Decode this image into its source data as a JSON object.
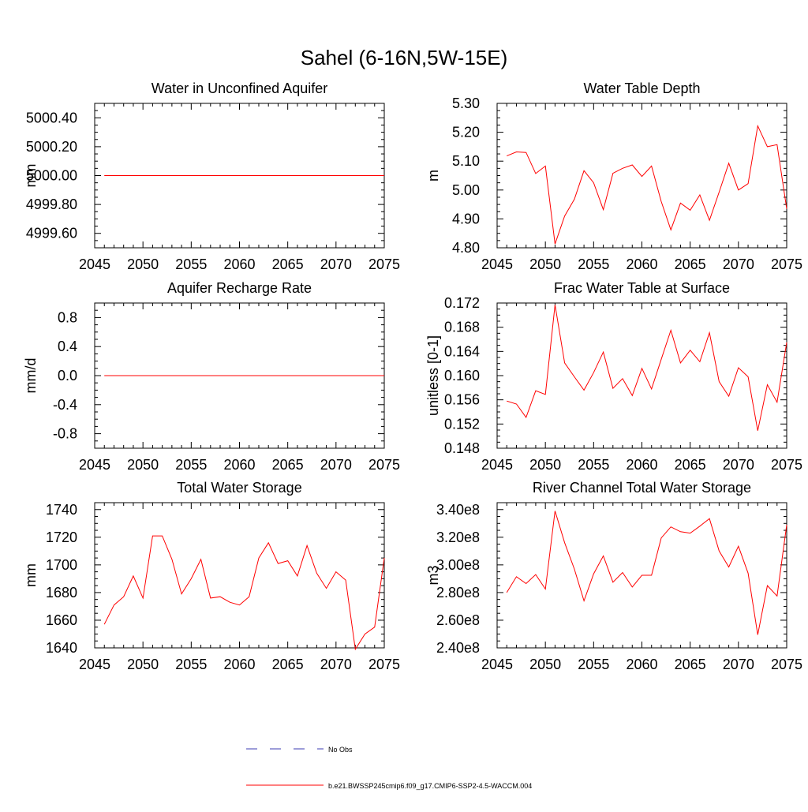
{
  "figure": {
    "title": "Sahel (6-16N,5W-15E)"
  },
  "legend": {
    "entries": [
      {
        "label": "No Obs",
        "color": "#3b3bb3",
        "dash": true
      },
      {
        "label": "b.e21.BWSSP245cmip6.f09_g17.CMIP6-SSP2-4.5-WACCM.004",
        "color": "#ff0000",
        "dash": false
      }
    ]
  },
  "chart_data": [
    {
      "type": "line",
      "title": "Water in Unconfined Aquifer",
      "ylabel": "mm",
      "xlim": [
        2045,
        2075
      ],
      "ylim": [
        4999.5,
        5000.5
      ],
      "xticks": [
        2045,
        2050,
        2055,
        2060,
        2065,
        2070,
        2075
      ],
      "yticks": [
        4999.6,
        4999.8,
        5000.0,
        5000.2,
        5000.4
      ],
      "ytick_labels": [
        "4999.60",
        "4999.80",
        "5000.00",
        "5000.20",
        "5000.40"
      ],
      "x": [
        2046,
        2047,
        2048,
        2049,
        2050,
        2051,
        2052,
        2053,
        2054,
        2055,
        2056,
        2057,
        2058,
        2059,
        2060,
        2061,
        2062,
        2063,
        2064,
        2065,
        2066,
        2067,
        2068,
        2069,
        2070,
        2071,
        2072,
        2073,
        2074,
        2075
      ],
      "series": [
        {
          "name": "b.e21.BWSSP245cmip6.f09_g17.CMIP6-SSP2-4.5-WACCM.004",
          "color": "#ff0000",
          "values": [
            5000,
            5000,
            5000,
            5000,
            5000,
            5000,
            5000,
            5000,
            5000,
            5000,
            5000,
            5000,
            5000,
            5000,
            5000,
            5000,
            5000,
            5000,
            5000,
            5000,
            5000,
            5000,
            5000,
            5000,
            5000,
            5000,
            5000,
            5000,
            5000,
            5000
          ]
        }
      ]
    },
    {
      "type": "line",
      "title": "Water Table Depth",
      "ylabel": "m",
      "xlim": [
        2045,
        2075
      ],
      "ylim": [
        4.8,
        5.3
      ],
      "xticks": [
        2045,
        2050,
        2055,
        2060,
        2065,
        2070,
        2075
      ],
      "yticks": [
        4.8,
        4.9,
        5.0,
        5.1,
        5.2,
        5.3
      ],
      "ytick_labels": [
        "4.80",
        "4.90",
        "5.00",
        "5.10",
        "5.20",
        "5.30"
      ],
      "x": [
        2046,
        2047,
        2048,
        2049,
        2050,
        2051,
        2052,
        2053,
        2054,
        2055,
        2056,
        2057,
        2058,
        2059,
        2060,
        2061,
        2062,
        2063,
        2064,
        2065,
        2066,
        2067,
        2068,
        2069,
        2070,
        2071,
        2072,
        2073,
        2074,
        2075
      ],
      "series": [
        {
          "name": "b.e21.BWSSP245cmip6.f09_g17.CMIP6-SSP2-4.5-WACCM.004",
          "color": "#ff0000",
          "values": [
            5.118,
            5.132,
            5.13,
            5.057,
            5.083,
            4.813,
            4.91,
            4.968,
            5.067,
            5.025,
            4.932,
            5.058,
            5.075,
            5.087,
            5.047,
            5.083,
            4.96,
            4.862,
            4.955,
            4.93,
            4.983,
            4.895,
            4.993,
            5.093,
            5.0,
            5.022,
            5.222,
            5.15,
            5.157,
            4.935
          ]
        }
      ]
    },
    {
      "type": "line",
      "title": "Aquifer Recharge Rate",
      "ylabel": "mm/d",
      "xlim": [
        2045,
        2075
      ],
      "ylim": [
        -1.0,
        1.0
      ],
      "xticks": [
        2045,
        2050,
        2055,
        2060,
        2065,
        2070,
        2075
      ],
      "yticks": [
        -0.8,
        -0.4,
        0.0,
        0.4,
        0.8
      ],
      "ytick_labels": [
        "-0.8",
        "-0.4",
        "0.0",
        "0.4",
        "0.8"
      ],
      "x": [
        2046,
        2047,
        2048,
        2049,
        2050,
        2051,
        2052,
        2053,
        2054,
        2055,
        2056,
        2057,
        2058,
        2059,
        2060,
        2061,
        2062,
        2063,
        2064,
        2065,
        2066,
        2067,
        2068,
        2069,
        2070,
        2071,
        2072,
        2073,
        2074,
        2075
      ],
      "series": [
        {
          "name": "b.e21.BWSSP245cmip6.f09_g17.CMIP6-SSP2-4.5-WACCM.004",
          "color": "#ff0000",
          "values": [
            0,
            0,
            0,
            0,
            0,
            0,
            0,
            0,
            0,
            0,
            0,
            0,
            0,
            0,
            0,
            0,
            0,
            0,
            0,
            0,
            0,
            0,
            0,
            0,
            0,
            0,
            0,
            0,
            0,
            0
          ]
        }
      ]
    },
    {
      "type": "line",
      "title": "Frac Water Table at Surface",
      "ylabel": "unitless [0-1]",
      "xlim": [
        2045,
        2075
      ],
      "ylim": [
        0.148,
        0.172
      ],
      "xticks": [
        2045,
        2050,
        2055,
        2060,
        2065,
        2070,
        2075
      ],
      "yticks": [
        0.148,
        0.152,
        0.156,
        0.16,
        0.164,
        0.168,
        0.172
      ],
      "ytick_labels": [
        "0.148",
        "0.152",
        "0.156",
        "0.160",
        "0.164",
        "0.168",
        "0.172"
      ],
      "x": [
        2046,
        2047,
        2048,
        2049,
        2050,
        2051,
        2052,
        2053,
        2054,
        2055,
        2056,
        2057,
        2058,
        2059,
        2060,
        2061,
        2062,
        2063,
        2064,
        2065,
        2066,
        2067,
        2068,
        2069,
        2070,
        2071,
        2072,
        2073,
        2074,
        2075
      ],
      "series": [
        {
          "name": "b.e21.BWSSP245cmip6.f09_g17.CMIP6-SSP2-4.5-WACCM.004",
          "color": "#ff0000",
          "values": [
            0.1558,
            0.1553,
            0.1531,
            0.1575,
            0.1569,
            0.1717,
            0.1621,
            0.1598,
            0.1576,
            0.1605,
            0.1639,
            0.1579,
            0.1595,
            0.1567,
            0.1612,
            0.1578,
            0.1627,
            0.1675,
            0.1621,
            0.1642,
            0.1623,
            0.1671,
            0.159,
            0.1566,
            0.1613,
            0.1598,
            0.1509,
            0.1585,
            0.1556,
            0.1655
          ]
        }
      ]
    },
    {
      "type": "line",
      "title": "Total Water Storage",
      "ylabel": "mm",
      "xlim": [
        2045,
        2075
      ],
      "ylim": [
        1640,
        1745
      ],
      "xticks": [
        2045,
        2050,
        2055,
        2060,
        2065,
        2070,
        2075
      ],
      "yticks": [
        1640,
        1660,
        1680,
        1700,
        1720,
        1740
      ],
      "ytick_labels": [
        "1640",
        "1660",
        "1680",
        "1700",
        "1720",
        "1740"
      ],
      "x": [
        2046,
        2047,
        2048,
        2049,
        2050,
        2051,
        2052,
        2053,
        2054,
        2055,
        2056,
        2057,
        2058,
        2059,
        2060,
        2061,
        2062,
        2063,
        2064,
        2065,
        2066,
        2067,
        2068,
        2069,
        2070,
        2071,
        2072,
        2073,
        2074,
        2075
      ],
      "series": [
        {
          "name": "b.e21.BWSSP245cmip6.f09_g17.CMIP6-SSP2-4.5-WACCM.004",
          "color": "#ff0000",
          "values": [
            1657,
            1671,
            1677,
            1692,
            1676,
            1721,
            1721,
            1704,
            1679,
            1690,
            1704,
            1676,
            1677,
            1673,
            1671,
            1677,
            1705,
            1716,
            1701,
            1703,
            1692,
            1714,
            1694,
            1683,
            1695,
            1689,
            1639,
            1650,
            1655,
            1705
          ]
        }
      ]
    },
    {
      "type": "line",
      "title": "River Channel Total Water Storage",
      "ylabel": "m3",
      "xlim": [
        2045,
        2075
      ],
      "ylim": [
        240000000,
        345000000
      ],
      "xticks": [
        2045,
        2050,
        2055,
        2060,
        2065,
        2070,
        2075
      ],
      "yticks": [
        240000000,
        260000000,
        280000000,
        300000000,
        320000000,
        340000000
      ],
      "ytick_labels": [
        "2.40e8",
        "2.60e8",
        "2.80e8",
        "3.00e8",
        "3.20e8",
        "3.40e8"
      ],
      "x": [
        2046,
        2047,
        2048,
        2049,
        2050,
        2051,
        2052,
        2053,
        2054,
        2055,
        2056,
        2057,
        2058,
        2059,
        2060,
        2061,
        2062,
        2063,
        2064,
        2065,
        2066,
        2067,
        2068,
        2069,
        2070,
        2071,
        2072,
        2073,
        2074,
        2075
      ],
      "series": [
        {
          "name": "b.e21.BWSSP245cmip6.f09_g17.CMIP6-SSP2-4.5-WACCM.004",
          "color": "#ff0000",
          "values": [
            280000000,
            291500000,
            286500000,
            293000000,
            282500000,
            339000000,
            316000000,
            297000000,
            274000000,
            293500000,
            306500000,
            287500000,
            294500000,
            284000000,
            292500000,
            292500000,
            319500000,
            327500000,
            324000000,
            323000000,
            328000000,
            333500000,
            310000000,
            298500000,
            313500000,
            294000000,
            249500000,
            285000000,
            277500000,
            329000000
          ]
        }
      ]
    }
  ]
}
